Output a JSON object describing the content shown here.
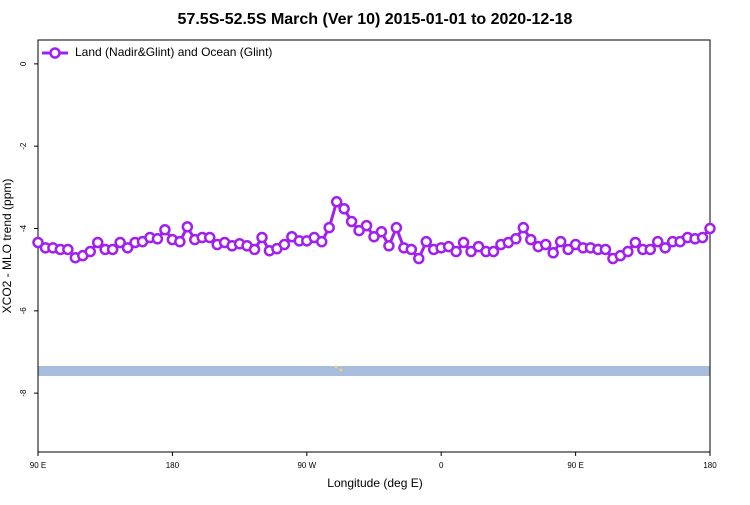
{
  "chart_data": {
    "type": "line",
    "title": "57.5S-52.5S March (Ver 10)   2015-01-01 to 2020-12-18",
    "xlabel": "Longitude (deg E)",
    "ylabel": "XCO2 - MLO trend (ppm)",
    "legend": "top-left",
    "xlim": [
      90,
      540
    ],
    "ylim": [
      -9.43,
      0.58
    ],
    "xticks": [
      {
        "value": 90,
        "label": "90 E"
      },
      180,
      {
        "value": 270,
        "label": "90 W"
      },
      {
        "value": 360,
        "label": "0"
      },
      {
        "value": 450,
        "label": "90 E"
      },
      {
        "value": 540,
        "label": "180"
      }
    ],
    "yticks": [
      0,
      -2,
      -4,
      -6,
      -8
    ],
    "x": [
      90,
      95,
      100,
      105,
      110,
      115,
      120,
      125,
      130,
      135,
      140,
      145,
      150,
      155,
      160,
      165,
      170,
      175,
      180,
      185,
      190,
      195,
      200,
      205,
      210,
      215,
      220,
      225,
      230,
      235,
      240,
      245,
      250,
      255,
      260,
      265,
      270,
      275,
      280,
      285,
      290,
      295,
      300,
      305,
      310,
      315,
      320,
      325,
      330,
      335,
      340,
      345,
      350,
      355,
      360,
      365,
      370,
      375,
      380,
      385,
      390,
      395,
      400,
      405,
      410,
      415,
      420,
      425,
      430,
      435,
      440,
      445,
      450,
      455,
      460,
      465,
      470,
      475,
      480,
      485,
      490,
      495,
      500,
      505,
      510,
      515,
      520,
      525,
      530,
      535,
      540
    ],
    "series": [
      {
        "name": "Land (Nadir&Glint) and Ocean (Glint)",
        "color": "#a020f0",
        "values": [
          -4.34,
          -4.47,
          -4.47,
          -4.51,
          -4.51,
          -4.71,
          -4.66,
          -4.56,
          -4.34,
          -4.51,
          -4.51,
          -4.34,
          -4.47,
          -4.34,
          -4.32,
          -4.22,
          -4.25,
          -4.03,
          -4.27,
          -4.32,
          -3.96,
          -4.27,
          -4.22,
          -4.22,
          -4.39,
          -4.34,
          -4.42,
          -4.37,
          -4.42,
          -4.51,
          -4.22,
          -4.54,
          -4.49,
          -4.39,
          -4.2,
          -4.3,
          -4.3,
          -4.22,
          -4.32,
          -3.98,
          -3.35,
          -3.52,
          -3.83,
          -4.05,
          -3.93,
          -4.2,
          -4.08,
          -4.42,
          -3.98,
          -4.47,
          -4.51,
          -4.73,
          -4.32,
          -4.51,
          -4.47,
          -4.44,
          -4.56,
          -4.34,
          -4.56,
          -4.44,
          -4.56,
          -4.56,
          -4.39,
          -4.34,
          -4.25,
          -3.98,
          -4.27,
          -4.44,
          -4.39,
          -4.59,
          -4.32,
          -4.51,
          -4.39,
          -4.47,
          -4.47,
          -4.51,
          -4.51,
          -4.73,
          -4.66,
          -4.56,
          -4.34,
          -4.51,
          -4.51,
          -4.32,
          -4.47,
          -4.32,
          -4.32,
          -4.22,
          -4.25,
          -4.22,
          -4.0
        ]
      }
    ]
  }
}
